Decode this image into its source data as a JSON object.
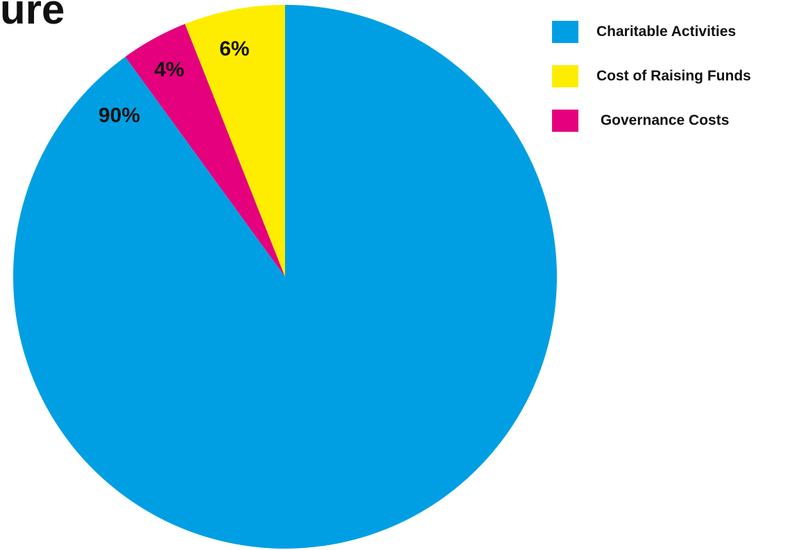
{
  "title_fragment": "ure",
  "chart_data": {
    "type": "pie",
    "title": "",
    "series": [
      {
        "name": "Charitable Activities",
        "value": 90,
        "label": "90%",
        "color": "#009FE3"
      },
      {
        "name": "Cost of Raising Funds",
        "value": 6,
        "label": "6%",
        "color": "#FFED00"
      },
      {
        "name": " Governance Costs",
        "value": 4,
        "label": "4%",
        "color": "#E5007E"
      }
    ],
    "start_angle": "12 o'clock",
    "direction": "clockwise (Charitable Activities from top), remaining slices counter-clockwise",
    "legend_position": "top-right"
  }
}
